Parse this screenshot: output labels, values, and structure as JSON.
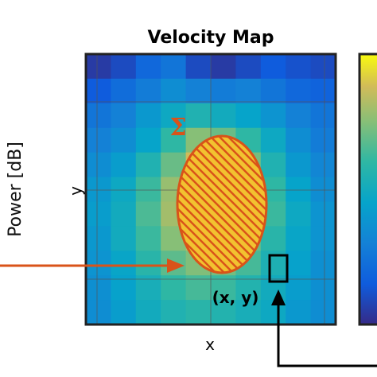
{
  "chart_data": {
    "type": "heatmap",
    "title": "Velocity Map",
    "xlabel": "x",
    "ylabel": "y",
    "colorbar_label": "Power [dB]",
    "colormap": "parula",
    "grid": true,
    "rows": 11,
    "cols": 10,
    "values": [
      [
        0.05,
        0.1,
        0.2,
        0.25,
        0.1,
        0.05,
        0.1,
        0.15,
        0.12,
        0.1
      ],
      [
        0.15,
        0.22,
        0.28,
        0.35,
        0.3,
        0.28,
        0.3,
        0.25,
        0.2,
        0.18
      ],
      [
        0.25,
        0.3,
        0.4,
        0.48,
        0.55,
        0.5,
        0.45,
        0.38,
        0.3,
        0.25
      ],
      [
        0.3,
        0.35,
        0.45,
        0.6,
        0.75,
        0.7,
        0.6,
        0.48,
        0.35,
        0.28
      ],
      [
        0.35,
        0.42,
        0.55,
        0.7,
        0.88,
        0.85,
        0.72,
        0.55,
        0.4,
        0.32
      ],
      [
        0.4,
        0.48,
        0.62,
        0.78,
        0.92,
        0.9,
        0.78,
        0.6,
        0.45,
        0.35
      ],
      [
        0.42,
        0.5,
        0.65,
        0.8,
        0.9,
        0.88,
        0.76,
        0.62,
        0.48,
        0.38
      ],
      [
        0.4,
        0.5,
        0.62,
        0.75,
        0.82,
        0.8,
        0.7,
        0.58,
        0.46,
        0.38
      ],
      [
        0.38,
        0.46,
        0.58,
        0.68,
        0.74,
        0.72,
        0.64,
        0.54,
        0.44,
        0.36
      ],
      [
        0.36,
        0.44,
        0.52,
        0.6,
        0.64,
        0.62,
        0.56,
        0.5,
        0.42,
        0.36
      ],
      [
        0.35,
        0.42,
        0.5,
        0.55,
        0.58,
        0.56,
        0.52,
        0.48,
        0.4,
        0.35
      ]
    ],
    "region_label": "Σ",
    "point_label": "(x, y)"
  },
  "colors": {
    "region": "#d95319",
    "arrow": "#d95319",
    "axes": "#222222",
    "grid": "#555555"
  }
}
